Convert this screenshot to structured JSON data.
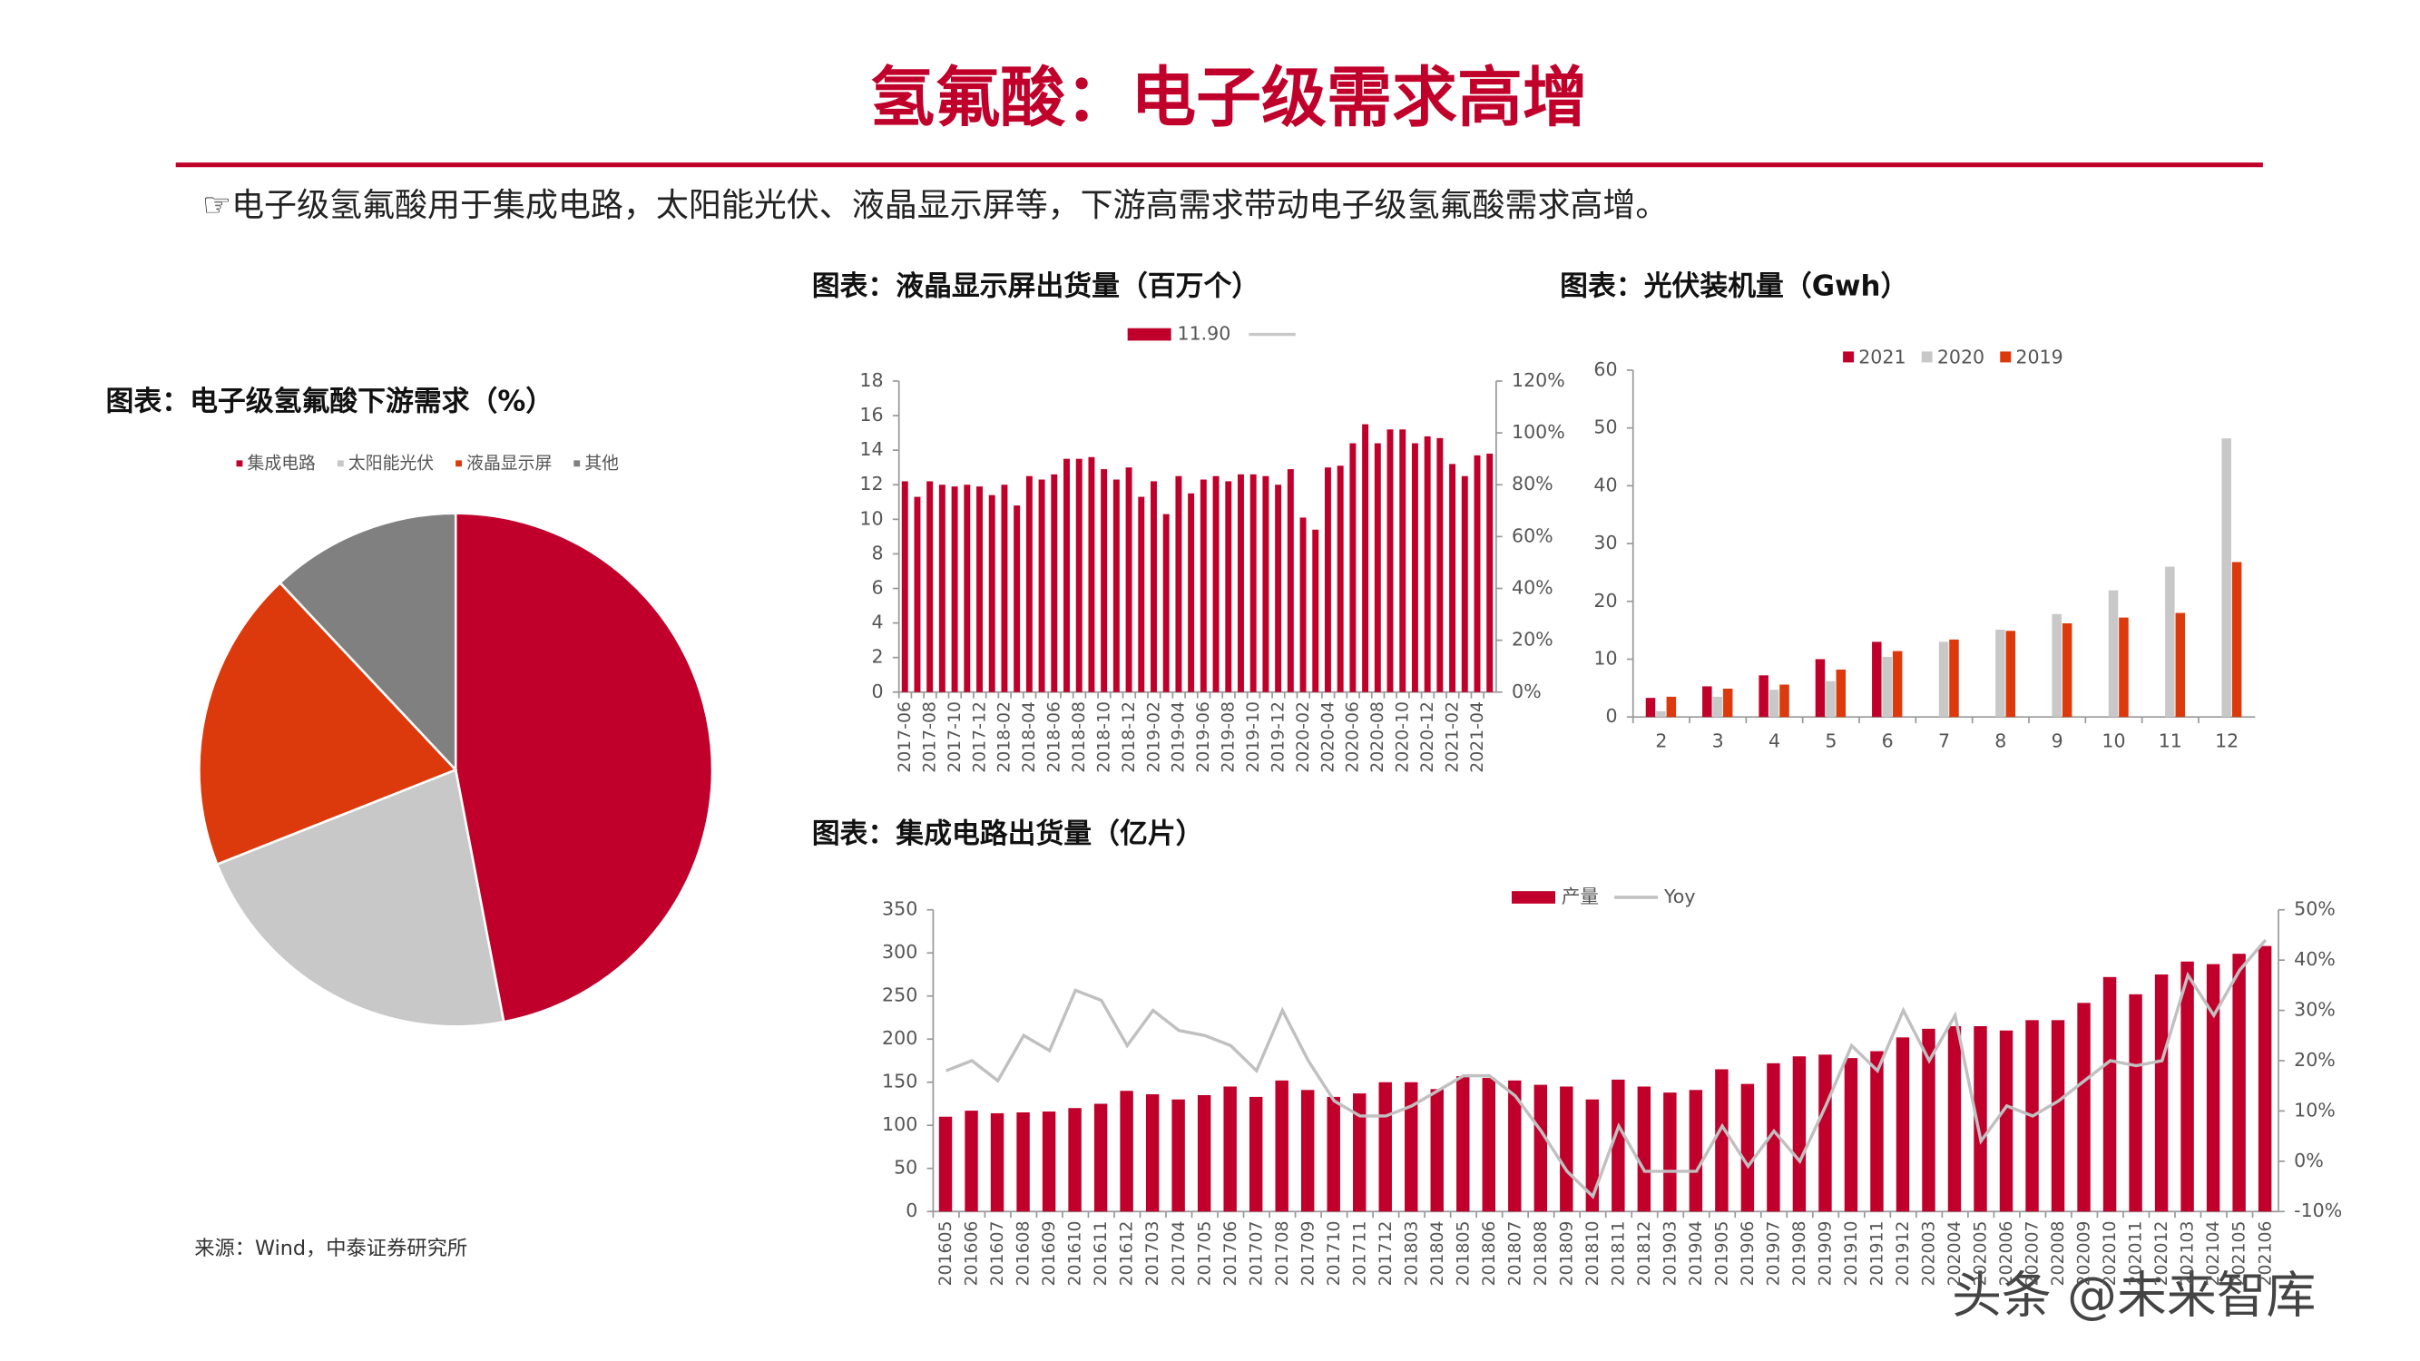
{
  "header": {
    "title": "氢氟酸：电子级需求高增",
    "bullet": "☞电子级氢氟酸用于集成电路，太阳能光伏、液晶显示屏等，下游高需求带动电子级氢氟酸需求高增。"
  },
  "source": "来源：Wind，中泰证券研究所",
  "watermark": "头条 @未来智库",
  "chart_data": [
    {
      "type": "pie",
      "title": "图表：电子级氢氟酸下游需求（%）",
      "categories": [
        "集成电路",
        "太阳能光伏",
        "液晶显示屏",
        "其他"
      ],
      "values": [
        47,
        22,
        19,
        12
      ],
      "colors": [
        "#c0002b",
        "#c8c8c8",
        "#dc3a0c",
        "#808080"
      ]
    },
    {
      "type": "bar",
      "title": "图表：液晶显示屏出货量（百万个）",
      "categories": [
        "2017-06",
        null,
        "2017-08",
        null,
        "2017-10",
        null,
        "2017-12",
        null,
        "2018-02",
        null,
        "2018-04",
        null,
        "2018-06",
        null,
        "2018-08",
        null,
        "2018-10",
        null,
        "2018-12",
        null,
        "2019-02",
        null,
        "2019-04",
        null,
        "2019-06",
        null,
        "2019-08",
        null,
        "2019-10",
        null,
        "2019-12",
        null,
        "2020-02",
        null,
        "2020-04",
        null,
        "2020-06",
        null,
        "2020-08",
        null,
        "2020-10",
        null,
        "2020-12",
        null,
        "2021-02",
        null,
        "2021-04",
        null
      ],
      "series": [
        {
          "name": "11.90",
          "color": "#c0002b",
          "values": [
            12.2,
            11.3,
            12.2,
            12.0,
            11.9,
            12.0,
            11.9,
            11.4,
            12.0,
            10.8,
            12.5,
            12.3,
            12.6,
            13.5,
            13.5,
            13.6,
            12.9,
            12.3,
            13.0,
            11.3,
            12.2,
            10.3,
            12.5,
            11.5,
            12.3,
            12.5,
            12.2,
            12.6,
            12.6,
            12.5,
            12.0,
            12.9,
            10.1,
            9.4,
            13.0,
            13.1,
            14.4,
            15.5,
            14.4,
            15.2,
            15.2,
            14.4,
            14.8,
            14.7,
            13.2,
            12.5,
            13.7,
            13.8
          ]
        }
      ],
      "ylim": [
        0,
        18
      ],
      "yticks": [
        0,
        2,
        4,
        6,
        8,
        10,
        12,
        14,
        16,
        18
      ],
      "y2lim": [
        0,
        120
      ],
      "y2ticks": [
        {
          "value": 0,
          "label": "0%"
        },
        {
          "value": 20,
          "label": "20%"
        },
        {
          "value": 40,
          "label": "40%"
        },
        {
          "value": 60,
          "label": "60%"
        },
        {
          "value": 80,
          "label": "80%"
        },
        {
          "value": 100,
          "label": "100%"
        },
        {
          "value": 120,
          "label": "120%"
        }
      ]
    },
    {
      "type": "bar",
      "title": "图表：光伏装机量（Gwh）",
      "categories": [
        2,
        3,
        4,
        5,
        6,
        7,
        8,
        9,
        10,
        11,
        12
      ],
      "series": [
        {
          "name": "2021",
          "color": "#c0002b",
          "values": [
            3.3,
            5.3,
            7.2,
            10.0,
            13.0,
            null,
            null,
            null,
            null,
            null,
            null
          ]
        },
        {
          "name": "2020",
          "color": "#c8c8c8",
          "values": [
            1.0,
            3.5,
            4.7,
            6.2,
            10.4,
            13.0,
            15.1,
            17.8,
            21.9,
            26.0,
            48.2
          ]
        },
        {
          "name": "2019",
          "color": "#dc3a0c",
          "values": [
            3.5,
            4.9,
            5.6,
            8.2,
            11.4,
            13.4,
            14.9,
            16.2,
            17.2,
            18.0,
            26.8
          ]
        }
      ],
      "ylim": [
        0,
        60
      ],
      "yticks": [
        0,
        10,
        20,
        30,
        40,
        50,
        60
      ]
    },
    {
      "type": "bar",
      "title": "图表：集成电路出货量（亿片）",
      "categories": [
        "201605",
        "201606",
        "201607",
        "201608",
        "201609",
        "201610",
        "201611",
        "201612",
        "201703",
        "201704",
        "201705",
        "201706",
        "201707",
        "201708",
        "201709",
        "201710",
        "201711",
        "201712",
        "201803",
        "201804",
        "201805",
        "201806",
        "201807",
        "201808",
        "201809",
        "201810",
        "201811",
        "201812",
        "201903",
        "201904",
        "201905",
        "201906",
        "201907",
        "201908",
        "201909",
        "201910",
        "201911",
        "201912",
        "202003",
        "202004",
        "202005",
        "202006",
        "202007",
        "202008",
        "202009",
        "202010",
        "202011",
        "202012",
        "202103",
        "202104",
        "202105",
        "202106"
      ],
      "series": [
        {
          "name": "产量",
          "color": "#c0002b",
          "values": [
            110,
            117,
            114,
            115,
            116,
            120,
            125,
            140,
            136,
            130,
            135,
            145,
            133,
            152,
            141,
            133,
            137,
            150,
            150,
            142,
            157,
            155,
            152,
            147,
            145,
            130,
            153,
            145,
            138,
            141,
            165,
            148,
            172,
            180,
            182,
            178,
            186,
            202,
            212,
            215,
            215,
            210,
            222,
            222,
            242,
            272,
            252,
            275,
            290,
            287,
            299,
            308
          ]
        },
        {
          "name": "Yoy",
          "type": "line",
          "axis": "y2",
          "color": "#c0c0c0",
          "values": [
            18,
            20,
            16,
            25,
            22,
            34,
            32,
            23,
            30,
            26,
            25,
            23,
            18,
            30,
            20,
            12,
            9,
            9,
            11,
            14,
            17,
            17,
            13,
            6,
            -2,
            -7,
            7,
            -2,
            -2,
            -2,
            7,
            -1,
            6,
            0,
            11,
            23,
            18,
            30,
            20,
            29,
            4,
            11,
            9,
            12,
            16,
            20,
            19,
            20,
            37,
            29,
            38,
            44
          ]
        }
      ],
      "ylim": [
        0,
        350
      ],
      "yticks": [
        0,
        50,
        100,
        150,
        200,
        250,
        300,
        350
      ],
      "y2lim": [
        -10,
        50
      ],
      "y2ticks": [
        {
          "value": -10,
          "label": "-10%"
        },
        {
          "value": 0,
          "label": "0%"
        },
        {
          "value": 10,
          "label": "10%"
        },
        {
          "value": 20,
          "label": "20%"
        },
        {
          "value": 30,
          "label": "30%"
        },
        {
          "value": 40,
          "label": "40%"
        },
        {
          "value": 50,
          "label": "50%"
        }
      ]
    }
  ]
}
